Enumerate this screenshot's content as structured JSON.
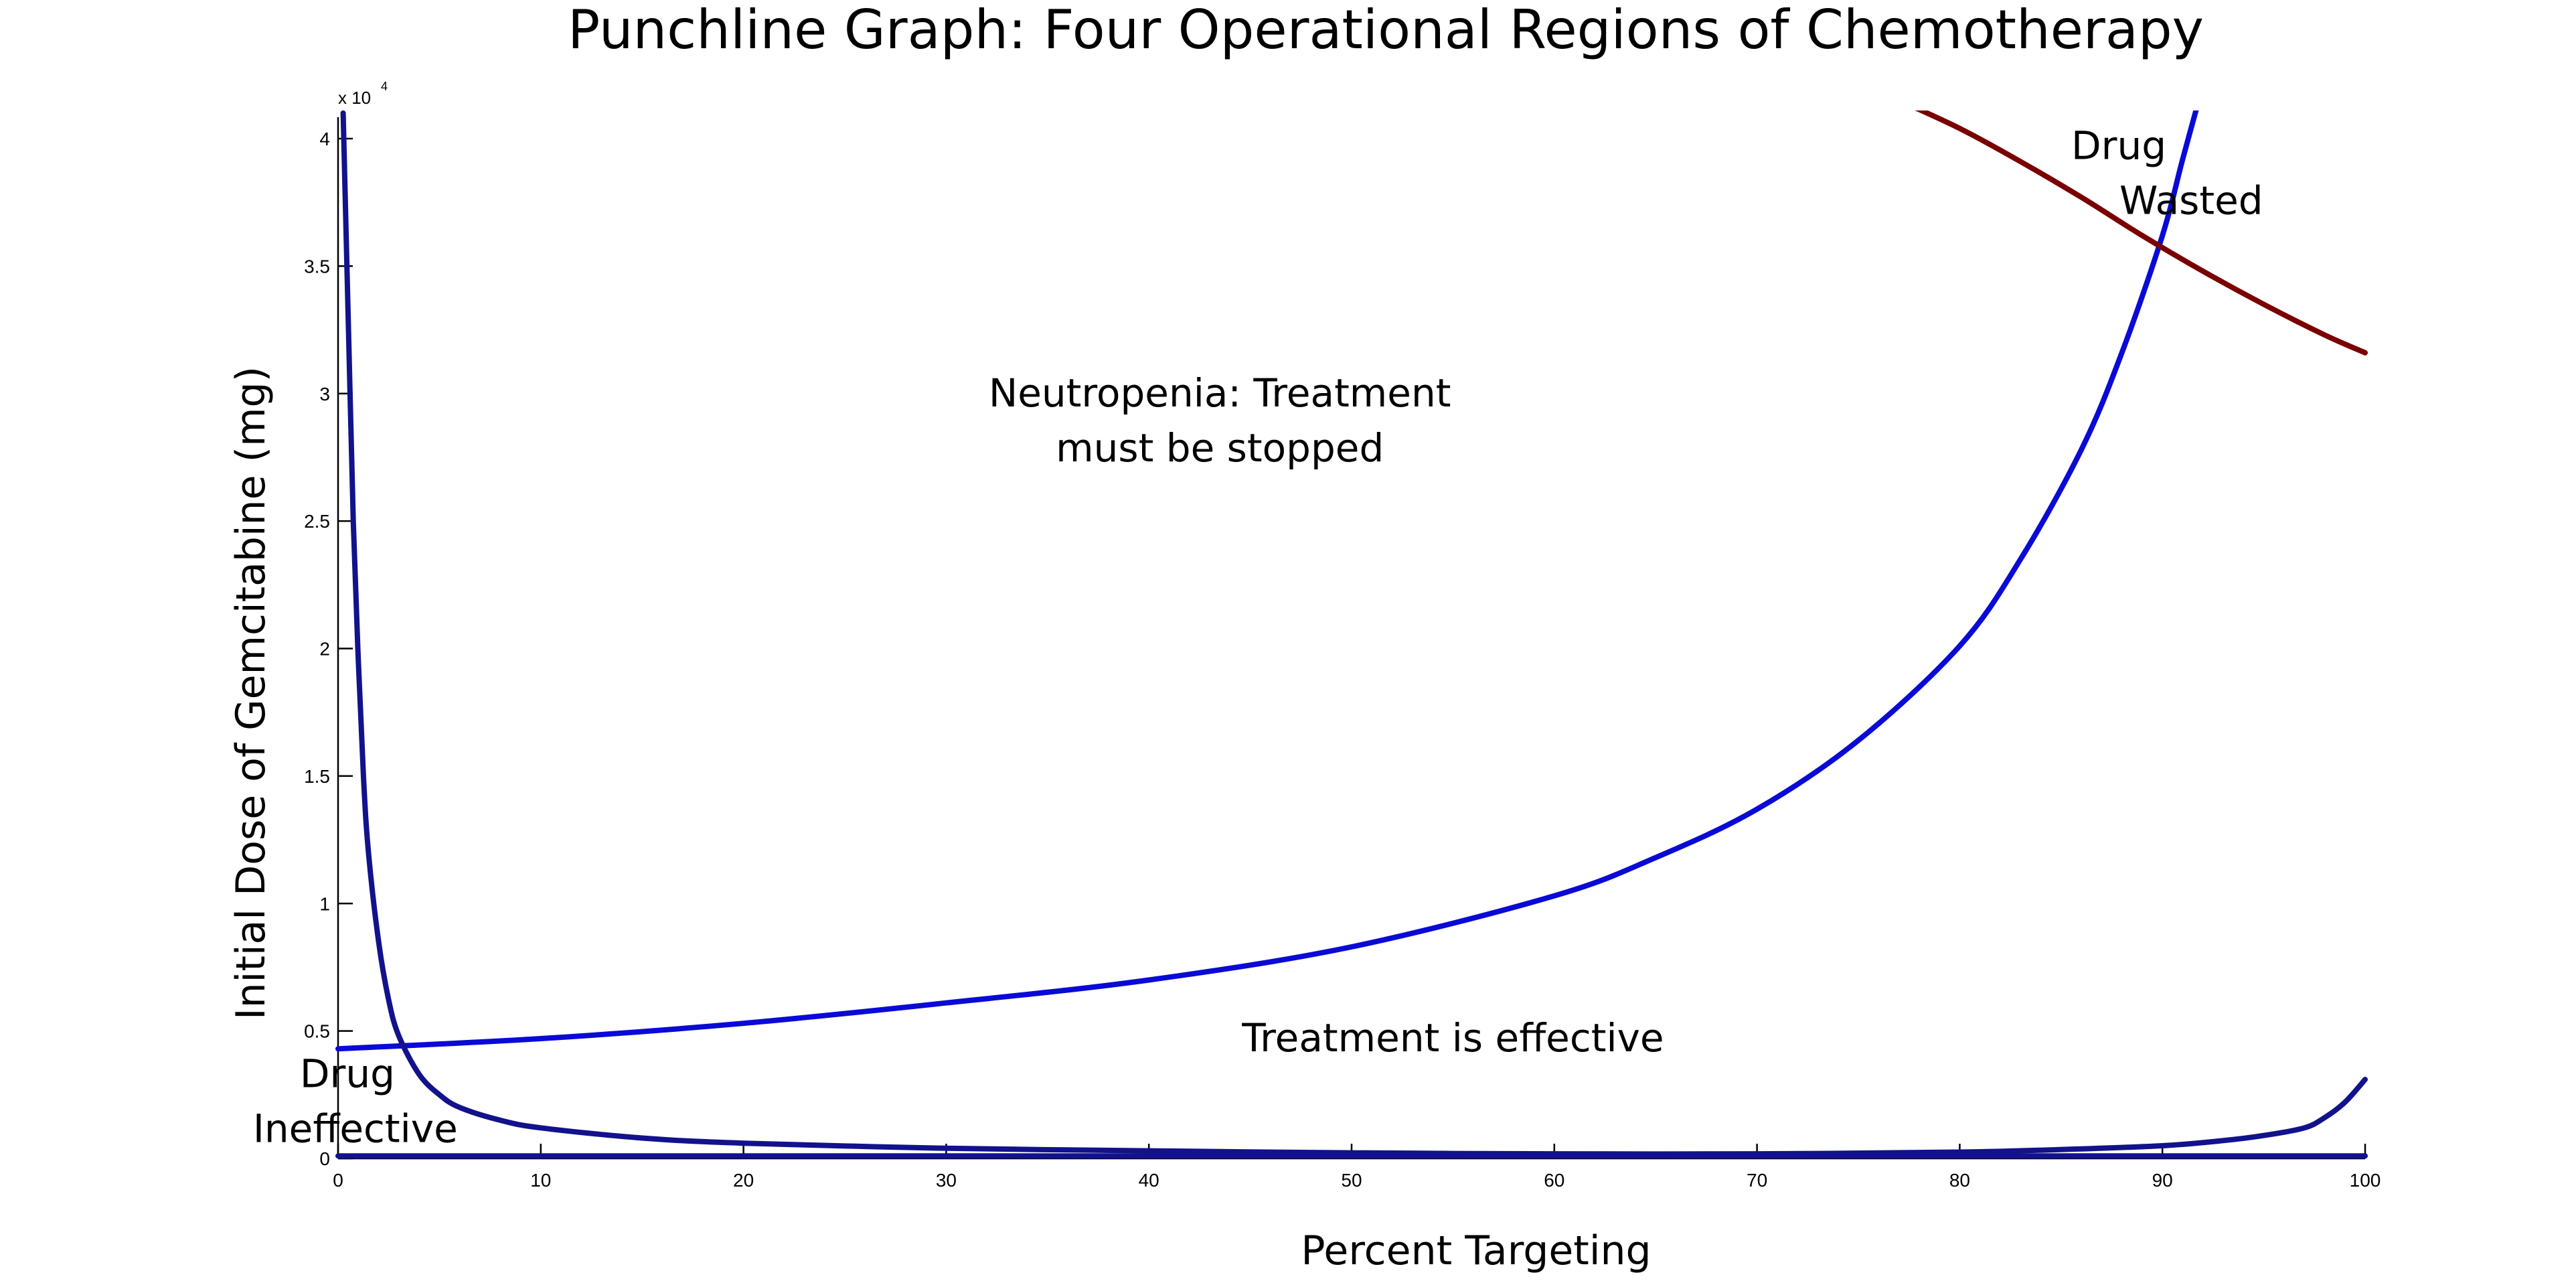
{
  "chart_data": {
    "type": "line",
    "title": "Punchline Graph: Four Operational Regions of Chemotherapy",
    "xlabel": "Percent Targeting",
    "ylabel": "Initial Dose of Gemcitabine (mg)",
    "y_exponent_label": "x 10",
    "y_exponent_power": "4",
    "xlim": [
      0,
      100
    ],
    "ylim": [
      0,
      4.1
    ],
    "x_ticks": [
      0,
      10,
      20,
      30,
      40,
      50,
      60,
      70,
      80,
      90,
      100
    ],
    "x_tick_labels": [
      "0",
      "10",
      "20",
      "30",
      "40",
      "50",
      "60",
      "70",
      "80",
      "90",
      "100"
    ],
    "y_ticks": [
      0,
      0.5,
      1,
      1.5,
      2,
      2.5,
      3,
      3.5,
      4
    ],
    "y_tick_labels": [
      "0",
      "0.5",
      "1",
      "1.5",
      "2",
      "2.5",
      "3",
      "3.5",
      "4"
    ],
    "series": [
      {
        "color": "#0a0ad6",
        "x": [
          0,
          10,
          20,
          30,
          40,
          50,
          60,
          65,
          70,
          75,
          80,
          83,
          86,
          88,
          90,
          91,
          92
        ],
        "y": [
          0.43,
          0.47,
          0.53,
          0.61,
          0.7,
          0.83,
          1.03,
          1.18,
          1.37,
          1.64,
          2.01,
          2.35,
          2.78,
          3.16,
          3.62,
          3.92,
          4.21
        ]
      },
      {
        "color": "#7a0000",
        "x": [
          77,
          80,
          83,
          86,
          89,
          92,
          95,
          98,
          100
        ],
        "y": [
          4.15,
          4.04,
          3.91,
          3.77,
          3.62,
          3.48,
          3.35,
          3.23,
          3.16
        ]
      },
      {
        "color": "#12128c",
        "x": [
          0.25,
          0.5,
          0.75,
          1,
          1.25,
          1.5,
          2,
          2.5,
          3,
          4,
          5,
          6,
          8,
          10,
          15,
          20,
          30,
          40,
          50,
          60,
          70,
          80,
          85,
          90,
          93,
          95,
          97,
          98,
          99,
          100
        ],
        "y": [
          4.1,
          3.3,
          2.5,
          1.95,
          1.5,
          1.2,
          0.85,
          0.62,
          0.48,
          0.33,
          0.25,
          0.2,
          0.15,
          0.12,
          0.08,
          0.06,
          0.04,
          0.03,
          0.022,
          0.018,
          0.018,
          0.025,
          0.035,
          0.05,
          0.07,
          0.09,
          0.12,
          0.16,
          0.22,
          0.31
        ]
      },
      {
        "color": "#12128c",
        "x": [
          0,
          100
        ],
        "y": [
          0.01,
          0.01
        ]
      }
    ],
    "annotations": [
      {
        "text_lines": [
          "Neutropenia: Treatment",
          "must be stopped"
        ],
        "x": 43.5,
        "y": 2.95,
        "anchor": "middle"
      },
      {
        "text_lines": [
          "Drug",
          "Wasted"
        ],
        "x": 85.5,
        "y": 3.92,
        "anchor": "start",
        "indent": true
      },
      {
        "text_lines": [
          "Treatment is effective"
        ],
        "x": 55,
        "y": 0.42,
        "anchor": "middle"
      },
      {
        "text_lines": [
          "Drug",
          "Ineffective"
        ],
        "x": -4.2,
        "y": 0.28,
        "anchor": "start",
        "indent_second": true
      }
    ]
  }
}
